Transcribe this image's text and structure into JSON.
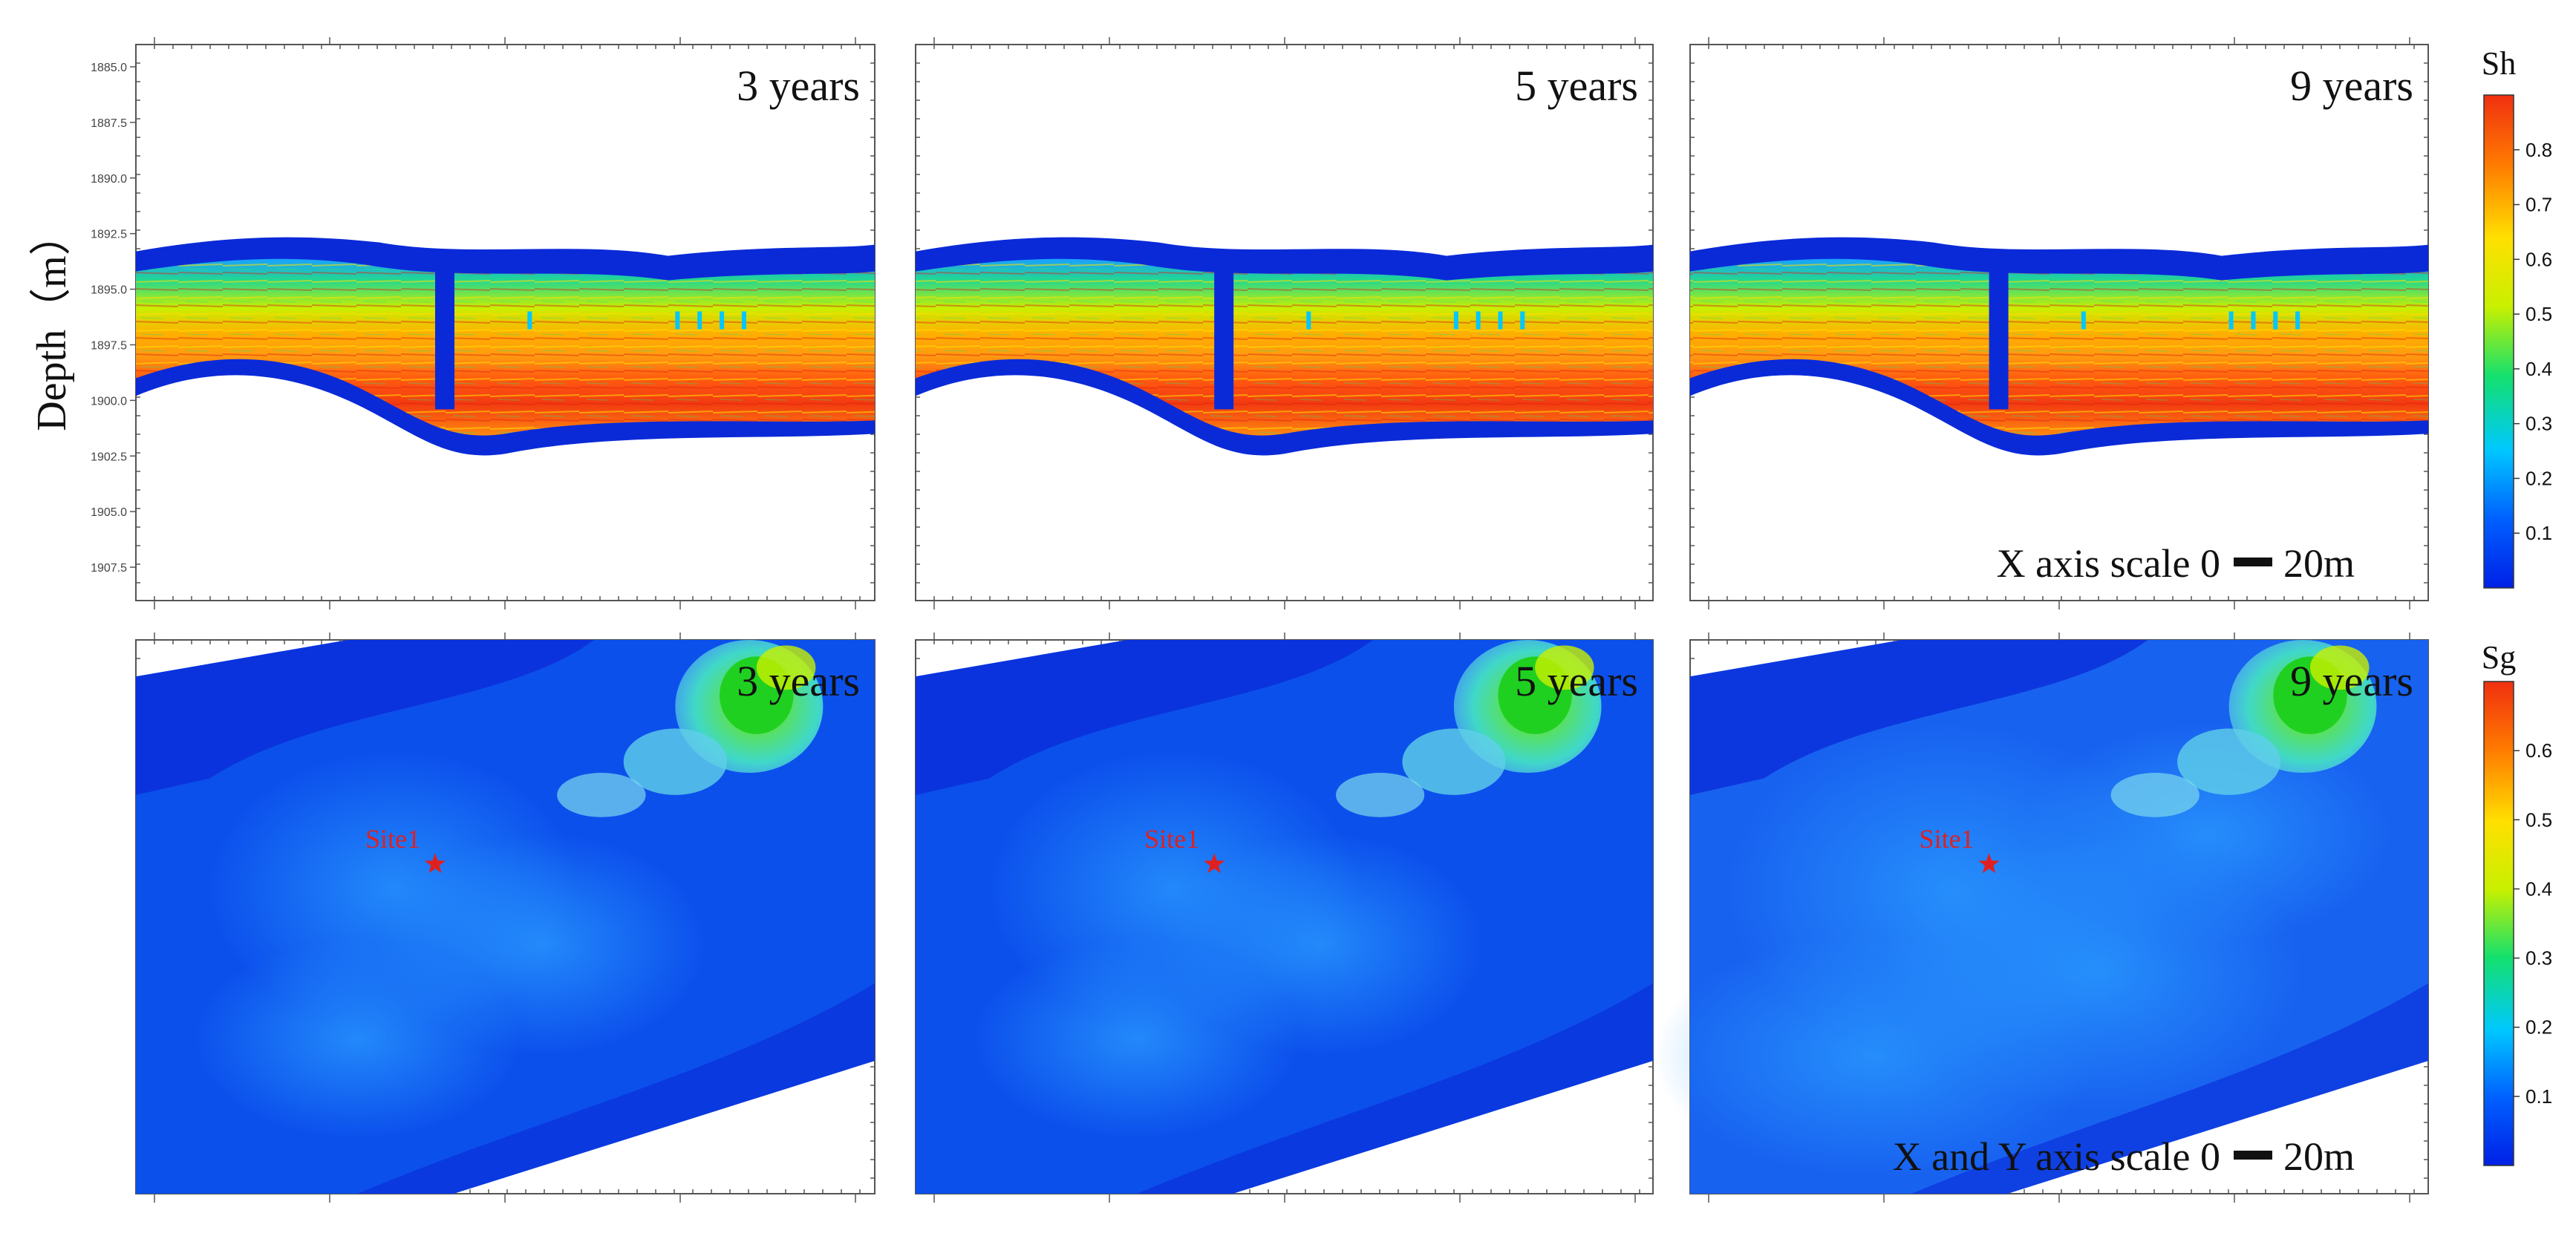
{
  "chart_data": [
    {
      "type": "heatmap",
      "variable": "Sh",
      "ylabel": "Depth（m）",
      "y_ticks": [
        "1885.0",
        "1887.5",
        "1890.0",
        "1892.5",
        "1895.0",
        "1897.5",
        "1900.0",
        "1902.5",
        "1905.0",
        "1907.5"
      ],
      "ylim": [
        1884.0,
        1909.0
      ],
      "panels": [
        {
          "label": "3 years"
        },
        {
          "label": "5 years"
        },
        {
          "label": "9 years"
        }
      ],
      "scale_note": {
        "text": "X axis scale 0",
        "unit": "20m"
      },
      "colorbar": {
        "title": "Sh",
        "range": [
          0.0,
          0.9
        ],
        "ticks": [
          "0.1",
          "0.2",
          "0.3",
          "0.4",
          "0.5",
          "0.6",
          "0.7",
          "0.8"
        ]
      }
    },
    {
      "type": "heatmap",
      "variable": "Sg",
      "panels": [
        {
          "label": "3 years",
          "site_label": "Site1"
        },
        {
          "label": "5 years",
          "site_label": "Site1"
        },
        {
          "label": "9 years",
          "site_label": "Site1"
        }
      ],
      "scale_note": {
        "text": "X and Y axis scale 0",
        "unit": "20m"
      },
      "colorbar": {
        "title": "Sg",
        "range": [
          0.0,
          0.7
        ],
        "ticks": [
          "0.1",
          "0.2",
          "0.3",
          "0.4",
          "0.5",
          "0.6"
        ]
      }
    }
  ],
  "colors": {
    "colormap": [
      "#0020e6",
      "#0060ff",
      "#00c8ff",
      "#14e06e",
      "#c8f000",
      "#ffe000",
      "#ff7a00",
      "#f03010"
    ],
    "site_marker": "#e02020",
    "background_dark_blue": "#0a2ad8"
  }
}
